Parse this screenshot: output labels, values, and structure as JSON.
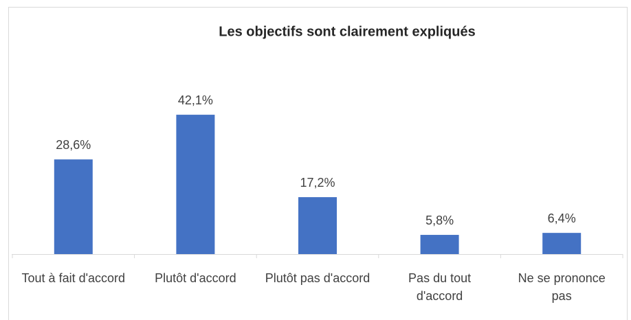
{
  "chart_data": {
    "type": "bar",
    "title": "Les objectifs sont clairement expliqués",
    "categories": [
      "Tout à fait d'accord",
      "Plutôt d'accord",
      "Plutôt pas d'accord",
      "Pas du tout d'accord",
      "Ne se prononce pas"
    ],
    "values": [
      28.6,
      42.1,
      17.2,
      5.8,
      6.4
    ],
    "value_labels": [
      "28,6%",
      "42,1%",
      "17,2%",
      "5,8%",
      "6,4%"
    ],
    "color": "#4472c4"
  }
}
